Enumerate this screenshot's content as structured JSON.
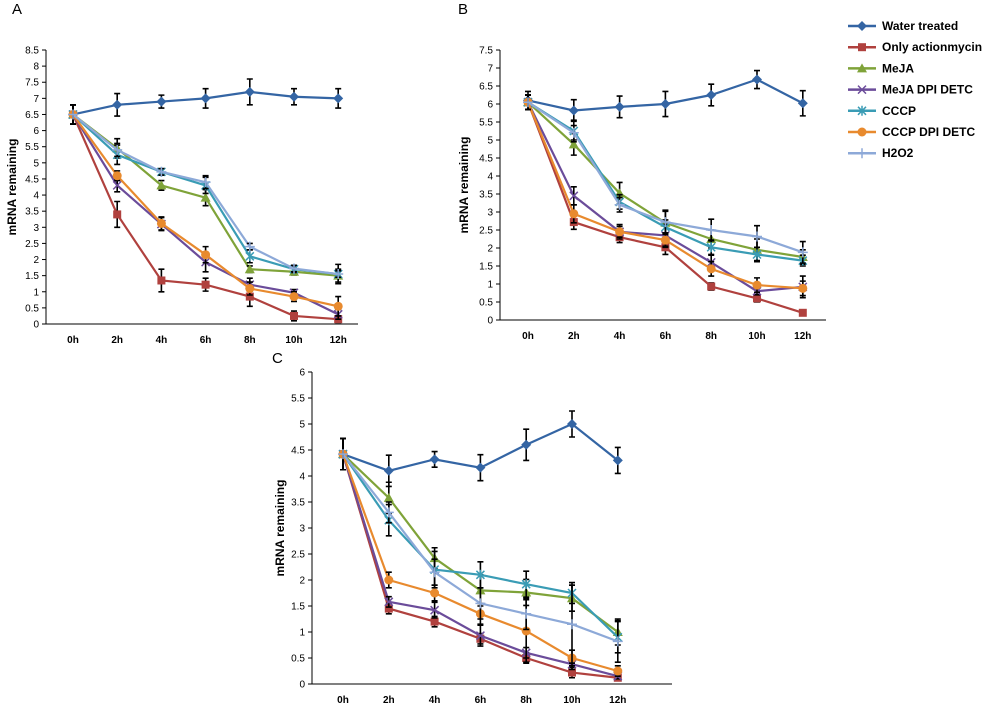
{
  "chart_data": [
    {
      "panel_label": "A",
      "type": "line",
      "title": "",
      "xlabel": "",
      "ylabel": "mRNA remaining",
      "categories": [
        "0h",
        "2h",
        "4h",
        "6h",
        "8h",
        "10h",
        "12h"
      ],
      "ylim": [
        0,
        8.5
      ],
      "ytick_labels": [
        "0",
        "0.5",
        "1",
        "1.5",
        "2",
        "2.5",
        "3",
        "3.5",
        "4",
        "4.5",
        "5",
        "5.5",
        "6",
        "6.5",
        "7",
        "7.5",
        "8",
        "8.5"
      ],
      "series": [
        {
          "name": "Water treated",
          "values": [
            6.5,
            6.8,
            6.9,
            7.0,
            7.2,
            7.05,
            7.0
          ],
          "errors": [
            0.3,
            0.35,
            0.2,
            0.3,
            0.4,
            0.25,
            0.3
          ]
        },
        {
          "name": "Only actionmycin",
          "values": [
            6.5,
            3.4,
            1.35,
            1.22,
            0.85,
            0.25,
            0.15
          ],
          "errors": [
            0.3,
            0.4,
            0.35,
            0.2,
            0.3,
            0.15,
            0.1
          ]
        },
        {
          "name": "MeJA",
          "values": [
            6.5,
            5.45,
            4.3,
            3.92,
            1.7,
            1.62,
            1.5
          ],
          "errors": [
            0.3,
            0.3,
            0.15,
            0.25,
            0.1,
            0.1,
            0.2
          ]
        },
        {
          "name": "MeJA DPI DETC",
          "values": [
            6.5,
            4.3,
            3.1,
            1.92,
            1.22,
            0.97,
            0.3
          ],
          "errors": [
            0.3,
            0.2,
            0.2,
            0.3,
            0.2,
            0.1,
            0.15
          ]
        },
        {
          "name": "CCCP",
          "values": [
            6.5,
            5.25,
            4.72,
            4.3,
            2.1,
            1.7,
            1.55
          ],
          "errors": [
            0.3,
            0.3,
            0.1,
            0.25,
            0.2,
            0.1,
            0.3
          ]
        },
        {
          "name": "CCCP DPI DETC",
          "values": [
            6.5,
            4.6,
            3.12,
            2.15,
            1.1,
            0.85,
            0.55
          ],
          "errors": [
            0.3,
            0.15,
            0.2,
            0.25,
            0.2,
            0.15,
            0.3
          ]
        },
        {
          "name": "H2O2",
          "values": [
            6.5,
            5.4,
            4.72,
            4.4,
            2.4,
            1.72,
            1.55
          ],
          "errors": [
            0.3,
            0.2,
            0.1,
            0.2,
            0.1,
            0.1,
            0.1
          ]
        }
      ]
    },
    {
      "panel_label": "B",
      "type": "line",
      "title": "",
      "xlabel": "",
      "ylabel": "mRNA remaining",
      "categories": [
        "0h",
        "2h",
        "4h",
        "6h",
        "8h",
        "10h",
        "12h"
      ],
      "ylim": [
        0,
        7.5
      ],
      "ytick_labels": [
        "0",
        "0.5",
        "1",
        "1.5",
        "2",
        "2.5",
        "3",
        "3.5",
        "4",
        "4.5",
        "5",
        "5.5",
        "6",
        "6.5",
        "7",
        "7.5"
      ],
      "series": [
        {
          "name": "Water treated",
          "values": [
            6.1,
            5.82,
            5.92,
            6.0,
            6.25,
            6.68,
            6.02
          ],
          "errors": [
            0.25,
            0.3,
            0.3,
            0.35,
            0.3,
            0.25,
            0.35
          ]
        },
        {
          "name": "Only actionmycin",
          "values": [
            6.05,
            2.72,
            2.3,
            2.02,
            0.93,
            0.6,
            0.2
          ],
          "errors": [
            0.2,
            0.2,
            0.15,
            0.2,
            0.1,
            0.1,
            0.05
          ]
        },
        {
          "name": "MeJA",
          "values": [
            6.05,
            4.88,
            3.52,
            2.7,
            2.25,
            1.95,
            1.75
          ],
          "errors": [
            0.2,
            0.3,
            0.3,
            0.35,
            0.25,
            0.3,
            0.2
          ]
        },
        {
          "name": "MeJA DPI DETC",
          "values": [
            6.05,
            3.45,
            2.45,
            2.35,
            1.6,
            0.8,
            0.92
          ],
          "errors": [
            0.2,
            0.25,
            0.15,
            0.3,
            0.2,
            0.1,
            0.3
          ]
        },
        {
          "name": "CCCP",
          "values": [
            6.05,
            5.25,
            3.28,
            2.58,
            2.02,
            1.82,
            1.65
          ],
          "errors": [
            0.2,
            0.3,
            0.2,
            0.2,
            0.2,
            0.2,
            0.15
          ]
        },
        {
          "name": "CCCP DPI DETC",
          "values": [
            6.05,
            2.95,
            2.45,
            2.22,
            1.42,
            0.97,
            0.88
          ],
          "errors": [
            0.2,
            0.25,
            0.2,
            0.2,
            0.2,
            0.2,
            0.2
          ]
        },
        {
          "name": "H2O2",
          "values": [
            6.05,
            5.2,
            3.2,
            2.72,
            2.5,
            2.32,
            1.88
          ],
          "errors": [
            0.2,
            0.2,
            0.2,
            0.3,
            0.3,
            0.3,
            0.3
          ]
        }
      ]
    },
    {
      "panel_label": "C",
      "type": "line",
      "title": "",
      "xlabel": "",
      "ylabel": "mRNA remaining",
      "categories": [
        "0h",
        "2h",
        "4h",
        "6h",
        "8h",
        "10h",
        "12h"
      ],
      "ylim": [
        0,
        6
      ],
      "ytick_labels": [
        "0",
        "0.5",
        "1",
        "1.5",
        "2",
        "2.5",
        "3",
        "3.5",
        "4",
        "4.5",
        "5",
        "5.5",
        "6"
      ],
      "series": [
        {
          "name": "Water treated",
          "values": [
            4.42,
            4.1,
            4.32,
            4.16,
            4.6,
            5.0,
            4.3
          ],
          "errors": [
            0.3,
            0.3,
            0.15,
            0.25,
            0.3,
            0.25,
            0.25
          ]
        },
        {
          "name": "Only actionmycin",
          "values": [
            4.42,
            1.45,
            1.2,
            0.87,
            0.5,
            0.22,
            0.12
          ],
          "errors": [
            0.3,
            0.1,
            0.1,
            0.1,
            0.1,
            0.1,
            0.05
          ]
        },
        {
          "name": "MeJA",
          "values": [
            4.42,
            3.58,
            2.42,
            1.8,
            1.76,
            1.65,
            1.0
          ],
          "errors": [
            0.3,
            0.3,
            0.2,
            0.3,
            0.25,
            0.25,
            0.25
          ]
        },
        {
          "name": "MeJA DPI DETC",
          "values": [
            4.42,
            1.58,
            1.42,
            0.93,
            0.6,
            0.38,
            0.15
          ],
          "errors": [
            0.3,
            0.1,
            0.15,
            0.2,
            0.1,
            0.1,
            0.05
          ]
        },
        {
          "name": "CCCP",
          "values": [
            4.42,
            3.15,
            2.2,
            2.1,
            1.92,
            1.75,
            0.9
          ],
          "errors": [
            0.3,
            0.3,
            0.35,
            0.25,
            0.25,
            0.2,
            0.3
          ]
        },
        {
          "name": "CCCP DPI DETC",
          "values": [
            4.42,
            2.0,
            1.75,
            1.35,
            1.02,
            0.5,
            0.25
          ],
          "errors": [
            0.3,
            0.15,
            0.15,
            0.2,
            0.6,
            0.15,
            0.1
          ]
        },
        {
          "name": "H2O2",
          "values": [
            4.42,
            3.3,
            2.15,
            1.55,
            1.35,
            1.15,
            0.82
          ],
          "errors": [
            0.3,
            0.2,
            0.25,
            0.3,
            0.3,
            0.75,
            0.4
          ]
        }
      ]
    }
  ],
  "legend": {
    "position": "top-right",
    "items": [
      {
        "name": "Water treated",
        "color": "#3465A4",
        "marker": "diamond"
      },
      {
        "name": "Only actionmycin",
        "color": "#B0413E",
        "marker": "square"
      },
      {
        "name": "MeJA",
        "color": "#7FA339",
        "marker": "triangle"
      },
      {
        "name": "MeJA DPI DETC",
        "color": "#6B4C9A",
        "marker": "x"
      },
      {
        "name": "CCCP",
        "color": "#3A9CB5",
        "marker": "star"
      },
      {
        "name": "CCCP DPI DETC",
        "color": "#E88A2E",
        "marker": "circle"
      },
      {
        "name": "H2O2",
        "color": "#8DA9D8",
        "marker": "plus"
      }
    ]
  }
}
